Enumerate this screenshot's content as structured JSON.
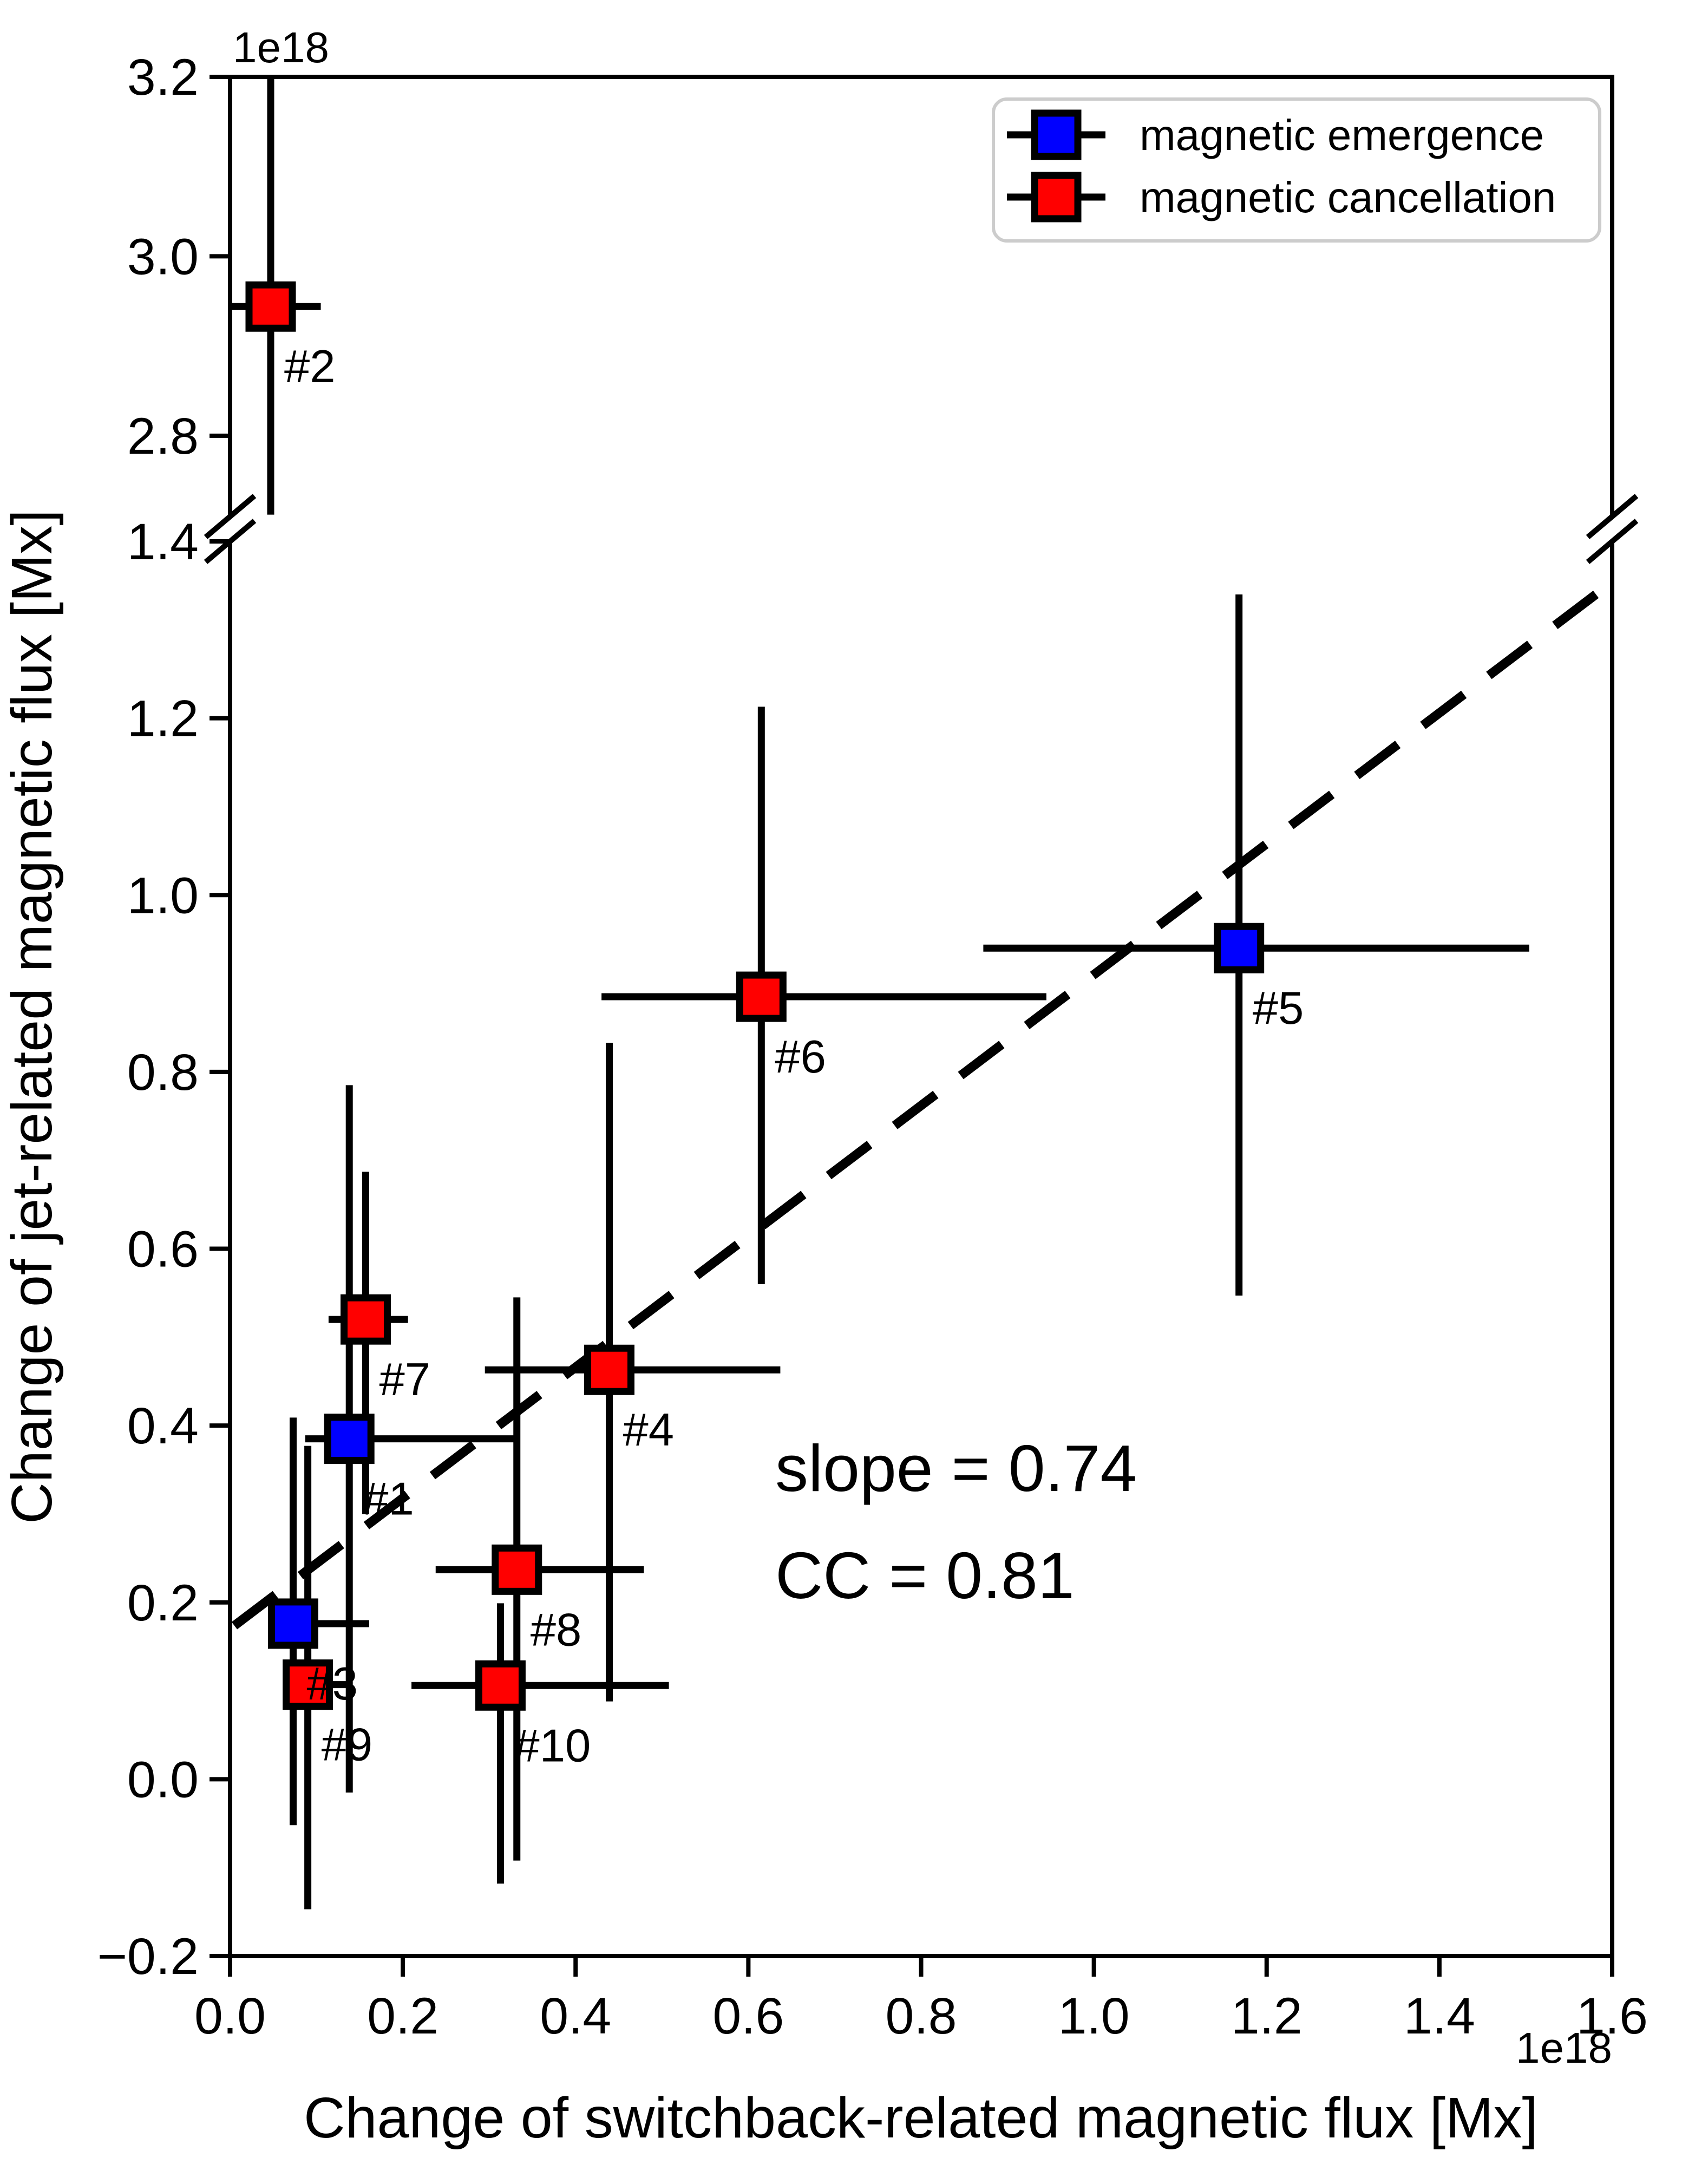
{
  "figure": {
    "background": "#ffffff"
  },
  "chart_data": {
    "type": "scatter",
    "title": "",
    "xlabel": "Change of switchback-related magnetic flux [Mx]",
    "ylabel": "Change of jet-related magnetic flux [Mx]",
    "x_offset_text": "1e18",
    "y_offset_text": "1e18",
    "grid": false,
    "broken_y_axis": true,
    "xlim": [
      0.0,
      1.6
    ],
    "x_ticks": [
      0.0,
      0.2,
      0.4,
      0.6,
      0.8,
      1.0,
      1.2,
      1.4,
      1.6
    ],
    "x_tick_labels": [
      "0.0",
      "0.2",
      "0.4",
      "0.6",
      "0.8",
      "1.0",
      "1.2",
      "1.4",
      "1.6"
    ],
    "panels": {
      "top": {
        "ylim": [
          2.71,
          3.2
        ],
        "y_ticks": [
          2.8,
          3.0,
          3.2
        ],
        "y_tick_labels": [
          "2.8",
          "3.0",
          "3.2"
        ]
      },
      "bottom": {
        "ylim": [
          -0.2,
          1.4
        ],
        "y_ticks": [
          -0.2,
          0.0,
          0.2,
          0.4,
          0.6,
          0.8,
          1.0,
          1.2,
          1.4
        ],
        "y_tick_labels": [
          "−0.2",
          "0.0",
          "0.2",
          "0.4",
          "0.6",
          "0.8",
          "1.0",
          "1.2",
          "1.4"
        ]
      }
    },
    "units_scale": "1e18 Mx",
    "series": [
      {
        "name": "magnetic emergence",
        "color": "#0000ff",
        "marker": "square"
      },
      {
        "name": "magnetic cancellation",
        "color": "#ff0000",
        "marker": "square"
      }
    ],
    "points": [
      {
        "label": "#1",
        "series": 0,
        "panel": "bottom",
        "x": 0.138,
        "y": 0.385,
        "x_err_lo": 0.087,
        "x_err_hi": 0.33,
        "y_err_lo": -0.015,
        "y_err_hi": 0.785
      },
      {
        "label": "#2",
        "series": 1,
        "panel": "top",
        "x": 0.047,
        "y": 2.944,
        "x_err_lo": 0.0,
        "x_err_hi": 0.105,
        "y_err_lo": 2.712,
        "y_err_hi": 3.2
      },
      {
        "label": "#3",
        "series": 0,
        "panel": "bottom",
        "x": 0.073,
        "y": 0.176,
        "x_err_lo": 0.047,
        "x_err_hi": 0.161,
        "y_err_lo": -0.052,
        "y_err_hi": 0.409
      },
      {
        "label": "#4",
        "series": 1,
        "panel": "bottom",
        "x": 0.439,
        "y": 0.463,
        "x_err_lo": 0.295,
        "x_err_hi": 0.637,
        "y_err_lo": 0.088,
        "y_err_hi": 0.833
      },
      {
        "label": "#5",
        "series": 0,
        "panel": "bottom",
        "x": 1.168,
        "y": 0.94,
        "x_err_lo": 0.872,
        "x_err_hi": 1.504,
        "y_err_lo": 0.547,
        "y_err_hi": 1.34
      },
      {
        "label": "#6",
        "series": 1,
        "panel": "bottom",
        "x": 0.615,
        "y": 0.885,
        "x_err_lo": 0.43,
        "x_err_hi": 0.945,
        "y_err_lo": 0.56,
        "y_err_hi": 1.213
      },
      {
        "label": "#7",
        "series": 1,
        "panel": "bottom",
        "x": 0.157,
        "y": 0.52,
        "x_err_lo": 0.114,
        "x_err_hi": 0.206,
        "y_err_lo": 0.3,
        "y_err_hi": 0.687
      },
      {
        "label": "#8",
        "series": 1,
        "panel": "bottom",
        "x": 0.332,
        "y": 0.237,
        "x_err_lo": 0.238,
        "x_err_hi": 0.479,
        "y_err_lo": -0.092,
        "y_err_hi": 0.545
      },
      {
        "label": "#9",
        "series": 1,
        "panel": "bottom",
        "x": 0.09,
        "y": 0.107,
        "x_err_lo": 0.065,
        "x_err_hi": 0.141,
        "y_err_lo": -0.147,
        "y_err_hi": 0.377
      },
      {
        "label": "#10",
        "series": 1,
        "panel": "bottom",
        "x": 0.313,
        "y": 0.106,
        "x_err_lo": 0.21,
        "x_err_hi": 0.508,
        "y_err_lo": -0.118,
        "y_err_hi": 0.199
      }
    ],
    "fit_line": {
      "slope": 0.74,
      "intercept": 0.17,
      "x_start": 0.005,
      "x_end": 1.597,
      "style": "dashed",
      "color": "#000000"
    },
    "annotations": [
      {
        "text": "slope = 0.74"
      },
      {
        "text": "CC = 0.81"
      }
    ],
    "legend_position": "upper right of top panel"
  },
  "legend": {
    "items": [
      {
        "label": "magnetic emergence",
        "color": "#0000ff"
      },
      {
        "label": "magnetic cancellation",
        "color": "#ff0000"
      }
    ]
  }
}
